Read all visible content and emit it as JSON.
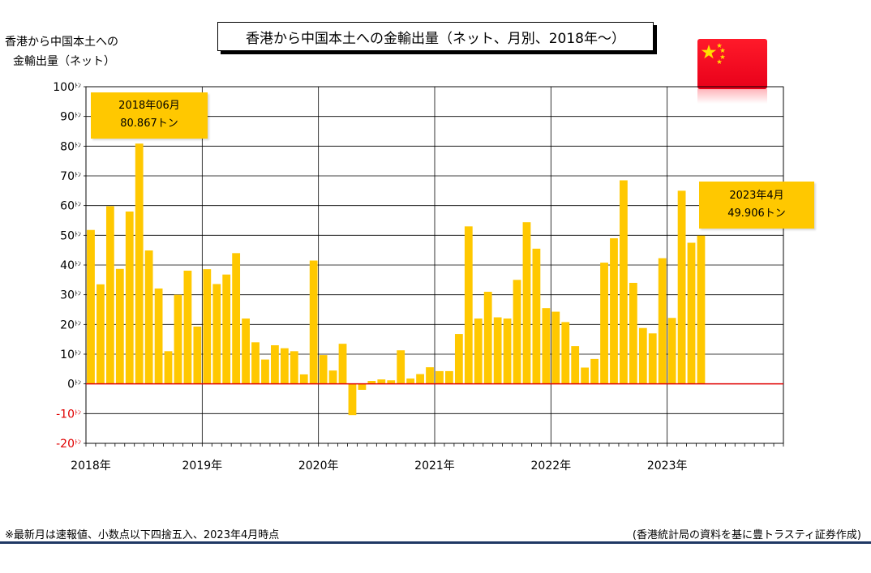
{
  "title": "香港から中国本土への金輸出量（ネット、月別、2018年～）",
  "ylabel_line1": "香港から中国本土への",
  "ylabel_line2": "金輸出量（ネット）",
  "annotations": [
    {
      "line1": "2018年06月",
      "line2": "80.867トン"
    },
    {
      "line1": "2023年4月",
      "line2": "49.906トン"
    }
  ],
  "footnote": "※最新月は速報値、小数点以下四捨五入、2023年4月時点",
  "source": "(香港統計局の資料を基に豊トラスティ証券作成)",
  "colors": {
    "bar": "#ffc800",
    "zero_line": "#e00000",
    "negative_label": "#e00000",
    "rule": "#1f3864"
  },
  "chart_data": {
    "type": "bar",
    "ylim": [
      -20,
      100
    ],
    "yticks": [
      100,
      90,
      80,
      70,
      60,
      50,
      40,
      30,
      20,
      10,
      0,
      -10,
      -20
    ],
    "ytick_unit": "ﾄﾝ",
    "grid": true,
    "x_year_labels": [
      "2018年",
      "2019年",
      "2020年",
      "2021年",
      "2022年",
      "2023年"
    ],
    "months_total": 72,
    "values": [
      51.8,
      33.5,
      59.8,
      38.7,
      58,
      80.867,
      44.9,
      32.1,
      11,
      30,
      38.1,
      19.3,
      38.6,
      33.6,
      36.8,
      44,
      22,
      14,
      8.2,
      13,
      12,
      11,
      3.2,
      41.5,
      9.7,
      4.5,
      13.5,
      -10.5,
      -2,
      1,
      1.5,
      1.2,
      11.3,
      1.8,
      3.3,
      5.6,
      4.3,
      4.3,
      16.8,
      53,
      22,
      31,
      22.4,
      22,
      35,
      54.4,
      45.5,
      25.5,
      24.3,
      20.8,
      12.7,
      5.5,
      8.4,
      40.8,
      49,
      68.5,
      34,
      18.8,
      17,
      42.3,
      22.2,
      65,
      47.5,
      49.906
    ]
  }
}
